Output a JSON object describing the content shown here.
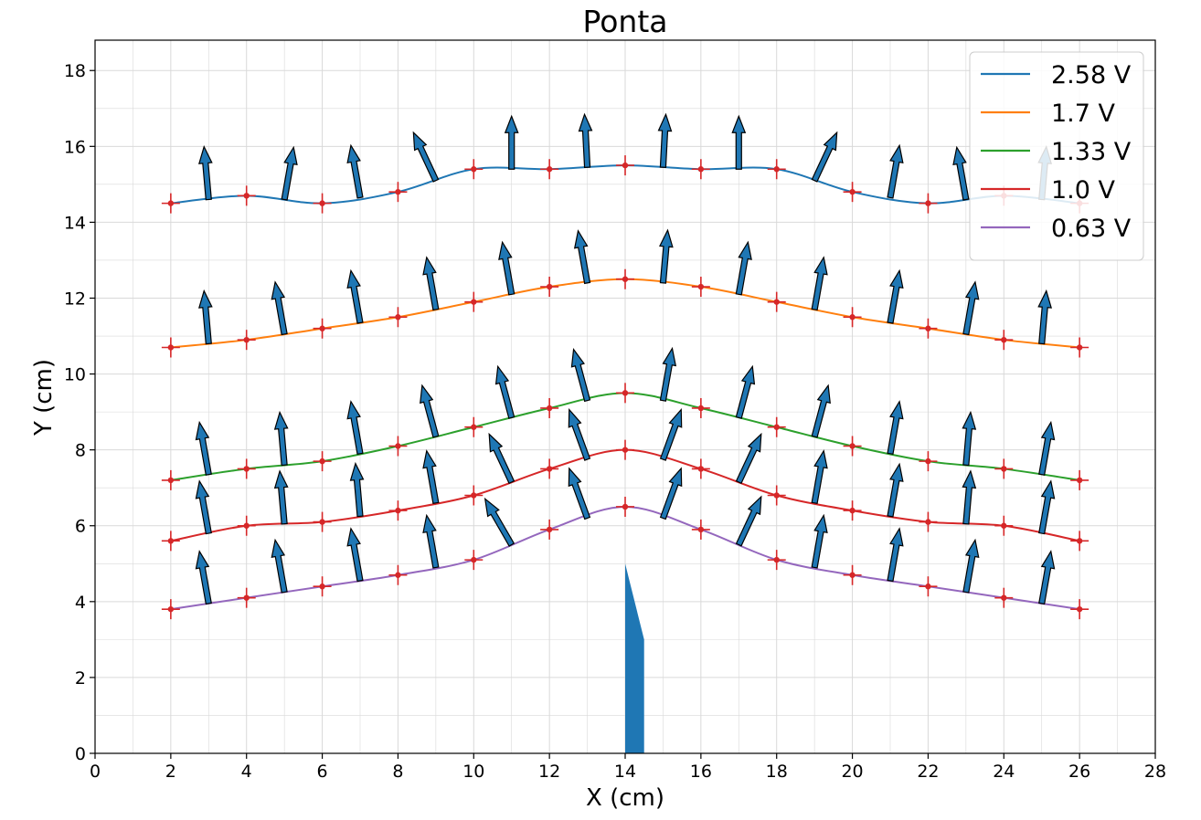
{
  "chart_data": {
    "type": "line",
    "title": "Ponta",
    "xlabel": "X (cm)",
    "ylabel": "Y (cm)",
    "xlim": [
      0,
      28
    ],
    "ylim": [
      0,
      18.8
    ],
    "xticks": [
      0,
      2,
      4,
      6,
      8,
      10,
      12,
      14,
      16,
      18,
      20,
      22,
      24,
      26,
      28
    ],
    "yticks": [
      0,
      2,
      4,
      6,
      8,
      10,
      12,
      14,
      16,
      18
    ],
    "grid": true,
    "legend_position": "top-right",
    "x": [
      2,
      4,
      6,
      8,
      10,
      12,
      14,
      16,
      18,
      20,
      22,
      24,
      26
    ],
    "series": [
      {
        "name": "2.58 V",
        "color": "#1f77b4",
        "values": [
          14.5,
          14.7,
          14.5,
          14.8,
          15.4,
          15.4,
          15.5,
          15.4,
          15.4,
          14.8,
          14.5,
          14.7,
          14.5
        ]
      },
      {
        "name": "1.7 V",
        "color": "#ff7f0e",
        "values": [
          10.7,
          10.9,
          11.2,
          11.5,
          11.9,
          12.3,
          12.5,
          12.3,
          11.9,
          11.5,
          11.2,
          10.9,
          10.7
        ]
      },
      {
        "name": "1.33 V",
        "color": "#2ca02c",
        "values": [
          7.2,
          7.5,
          7.7,
          8.1,
          8.6,
          9.1,
          9.5,
          9.1,
          8.6,
          8.1,
          7.7,
          7.5,
          7.2
        ]
      },
      {
        "name": "1.0 V",
        "color": "#d62728",
        "values": [
          5.6,
          6.0,
          6.1,
          6.4,
          6.8,
          7.5,
          8.0,
          7.5,
          6.8,
          6.4,
          6.1,
          6.0,
          5.6
        ]
      },
      {
        "name": "0.63 V",
        "color": "#9467bd",
        "values": [
          3.8,
          4.1,
          4.4,
          4.7,
          5.1,
          5.9,
          6.5,
          5.9,
          5.1,
          4.7,
          4.4,
          4.1,
          3.8
        ]
      }
    ],
    "field_arrows": {
      "color": "#1f77b4",
      "x": [
        3,
        5,
        7,
        9,
        11,
        13,
        15,
        17,
        19,
        21,
        23,
        25
      ],
      "series_angles_deg": [
        [
          -5,
          10,
          -10,
          -25,
          0,
          -3,
          3,
          0,
          25,
          10,
          -10,
          5
        ],
        [
          -5,
          -10,
          -10,
          -10,
          -10,
          -10,
          5,
          10,
          10,
          10,
          10,
          5
        ],
        [
          -10,
          -5,
          -10,
          -15,
          -15,
          -15,
          10,
          15,
          15,
          10,
          5,
          10
        ],
        [
          -10,
          -5,
          -5,
          -10,
          -25,
          -20,
          20,
          25,
          10,
          10,
          5,
          10
        ],
        [
          -10,
          -10,
          -10,
          -10,
          -30,
          -20,
          20,
          25,
          10,
          10,
          10,
          10
        ]
      ]
    },
    "electrode": {
      "color": "#1f77b4",
      "x": [
        14,
        14.5
      ],
      "y_tip": 5.0,
      "y_shoulder": 3.0
    }
  }
}
